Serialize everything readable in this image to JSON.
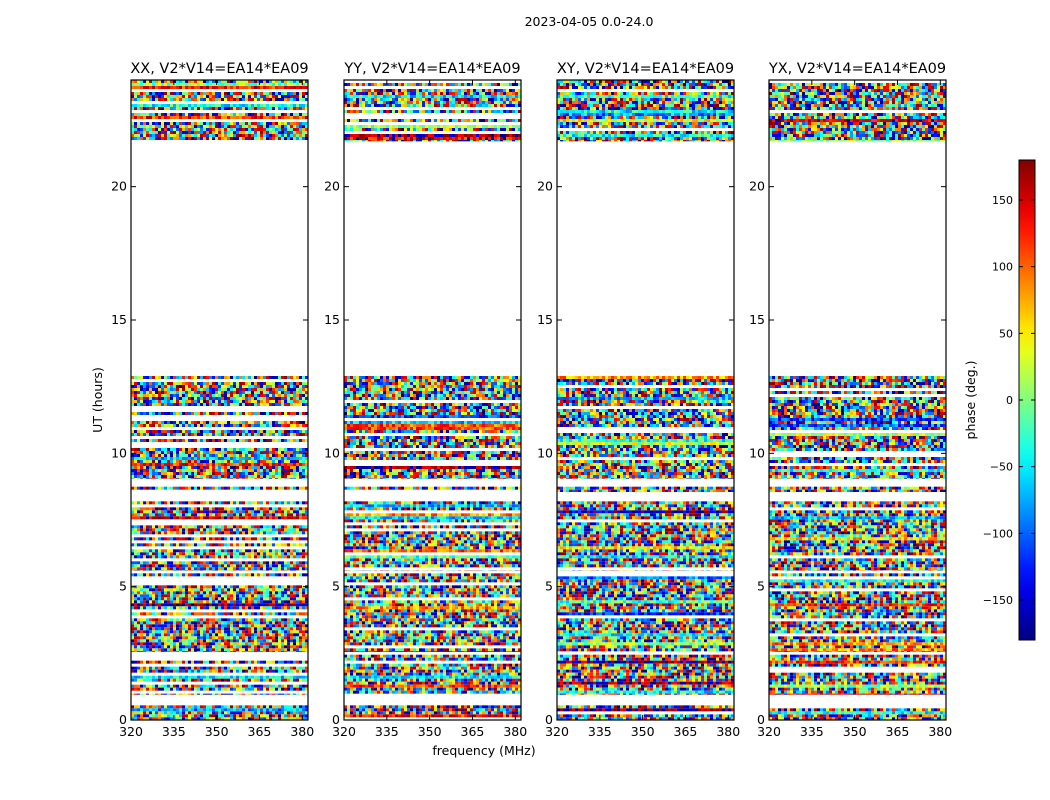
{
  "figure": {
    "suptitle": "2023-04-05 0.0-24.0"
  },
  "chart_data": {
    "type": "heatmap",
    "title": "2023-04-05 0.0-24.0",
    "xlabel": "frequency (MHz)",
    "ylabel": "UT (hours)",
    "xlim": [
      320,
      382
    ],
    "ylim": [
      0,
      24
    ],
    "xticks": [
      "320",
      "335",
      "350",
      "365",
      "380"
    ],
    "yticks": [
      "0",
      "5",
      "10",
      "15",
      "20"
    ],
    "panels": [
      {
        "name": "xx",
        "title": "XX, V2*V14=EA14*EA09"
      },
      {
        "name": "yy",
        "title": "YY, V2*V14=EA14*EA09"
      },
      {
        "name": "xy",
        "title": "XY, V2*V14=EA14*EA09"
      },
      {
        "name": "yx",
        "title": "YX, V2*V14=EA14*EA09"
      }
    ],
    "data_hour_ranges": [
      [
        0.0,
        0.55
      ],
      [
        0.95,
        2.45
      ],
      [
        2.55,
        5.5
      ],
      [
        5.6,
        8.2
      ],
      [
        8.55,
        8.75
      ],
      [
        9.05,
        12.9
      ],
      [
        21.7,
        24.0
      ]
    ],
    "empty_hour_ranges": [
      [
        12.9,
        21.7
      ]
    ],
    "colorbar": {
      "label": "phase (deg.)",
      "range": [
        -180,
        180
      ],
      "ticks": [
        "150",
        "100",
        "50",
        "0",
        "−50",
        "−100",
        "−150"
      ],
      "tick_values": [
        150,
        100,
        50,
        0,
        -50,
        -100,
        -150
      ],
      "colormap": "jet"
    }
  }
}
